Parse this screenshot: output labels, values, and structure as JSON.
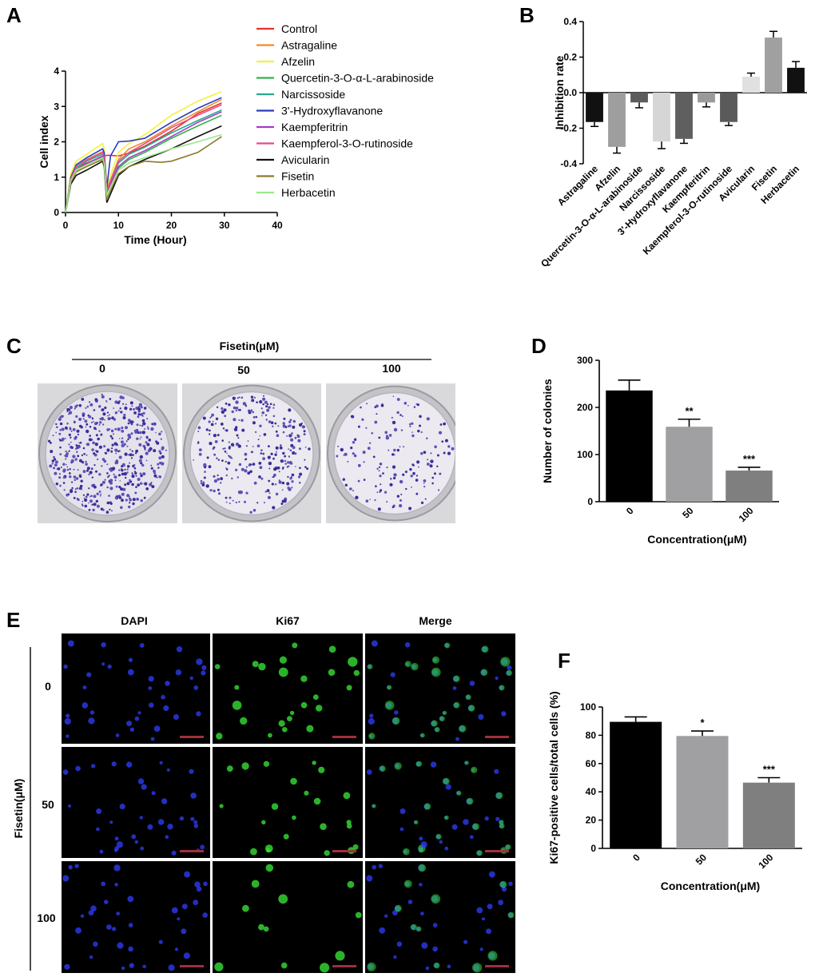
{
  "panels": {
    "A": {
      "label": "A"
    },
    "B": {
      "label": "B"
    },
    "C": {
      "label": "C",
      "header": "Fisetin(μM)",
      "doses": [
        "0",
        "50",
        "100"
      ]
    },
    "D": {
      "label": "D"
    },
    "E": {
      "label": "E",
      "columns": [
        "DAPI",
        "Ki67",
        "Merge"
      ],
      "row_axis_label": "Fisetin(μM)",
      "rows": [
        "0",
        "50",
        "100"
      ]
    },
    "F": {
      "label": "F"
    }
  },
  "colors": {
    "control": "#e8322b",
    "astragaline": "#f08a2a",
    "afzelin": "#f2f23a",
    "quercetin": "#32b34a",
    "narcissoside": "#1fae8e",
    "hydroxyflavanone": "#2a3bbd",
    "kaempferitrin": "#a63ac9",
    "kaempferol": "#e84b8a",
    "avicularin": "#111111",
    "fisetin": "#8a7a2a",
    "herbacetin": "#9ae88c",
    "dapi": "#2f3fff",
    "ki67": "#35e035"
  },
  "chart_data": [
    {
      "id": "A",
      "type": "line",
      "xlabel": "Time (Hour)",
      "ylabel": "Cell index",
      "xlim": [
        0,
        40
      ],
      "ylim": [
        0,
        4
      ],
      "xticks": [
        "0",
        "10",
        "20",
        "30",
        "40"
      ],
      "yticks": [
        "0",
        "1",
        "2",
        "3",
        "4"
      ],
      "legend_position": "right",
      "series": [
        {
          "name": "Control",
          "color": "#e8322b",
          "points": [
            [
              0,
              0
            ],
            [
              1,
              0.9
            ],
            [
              2,
              1.25
            ],
            [
              4,
              1.4
            ],
            [
              7,
              1.58
            ],
            [
              7.3,
              1.6
            ],
            [
              8,
              1.62
            ],
            [
              10,
              1.6
            ],
            [
              12,
              1.68
            ],
            [
              15,
              1.88
            ],
            [
              20,
              2.3
            ],
            [
              25,
              2.8
            ],
            [
              29.5,
              3.1
            ]
          ]
        },
        {
          "name": "Astragaline",
          "color": "#f08a2a",
          "points": [
            [
              0,
              0
            ],
            [
              1,
              0.95
            ],
            [
              2,
              1.3
            ],
            [
              4,
              1.5
            ],
            [
              7,
              1.72
            ],
            [
              7.3,
              1.6
            ],
            [
              7.8,
              0.65
            ],
            [
              10,
              1.5
            ],
            [
              12,
              1.8
            ],
            [
              15,
              2.0
            ],
            [
              20,
              2.45
            ],
            [
              25,
              2.85
            ],
            [
              29.5,
              3.2
            ]
          ]
        },
        {
          "name": "Afzelin",
          "color": "#f2f23a",
          "points": [
            [
              0,
              0
            ],
            [
              1,
              1.1
            ],
            [
              2,
              1.45
            ],
            [
              4,
              1.65
            ],
            [
              7,
              1.95
            ],
            [
              7.3,
              1.8
            ],
            [
              7.8,
              0.75
            ],
            [
              10,
              1.7
            ],
            [
              12,
              1.95
            ],
            [
              15,
              2.2
            ],
            [
              20,
              2.75
            ],
            [
              25,
              3.15
            ],
            [
              29.5,
              3.42
            ]
          ]
        },
        {
          "name": "Quercetin-3-O-α-L-arabinoside",
          "color": "#32b34a",
          "points": [
            [
              0,
              0
            ],
            [
              1,
              0.9
            ],
            [
              2,
              1.2
            ],
            [
              4,
              1.35
            ],
            [
              7,
              1.55
            ],
            [
              7.3,
              1.4
            ],
            [
              7.8,
              0.55
            ],
            [
              10,
              1.25
            ],
            [
              12,
              1.5
            ],
            [
              15,
              1.7
            ],
            [
              20,
              2.1
            ],
            [
              25,
              2.45
            ],
            [
              29.5,
              2.75
            ]
          ]
        },
        {
          "name": "Narcissoside",
          "color": "#1fae8e",
          "points": [
            [
              0,
              0
            ],
            [
              1,
              0.95
            ],
            [
              2,
              1.25
            ],
            [
              4,
              1.45
            ],
            [
              7,
              1.65
            ],
            [
              7.3,
              1.5
            ],
            [
              7.8,
              0.6
            ],
            [
              10,
              1.4
            ],
            [
              12,
              1.65
            ],
            [
              15,
              1.85
            ],
            [
              20,
              2.25
            ],
            [
              25,
              2.6
            ],
            [
              29.5,
              2.9
            ]
          ]
        },
        {
          "name": "3'-Hydroxyflavanone",
          "color": "#2a3bbd",
          "points": [
            [
              0,
              0
            ],
            [
              1,
              1.0
            ],
            [
              2,
              1.35
            ],
            [
              4,
              1.55
            ],
            [
              7,
              1.8
            ],
            [
              7.3,
              1.7
            ],
            [
              7.8,
              0.7
            ],
            [
              8.5,
              1.6
            ],
            [
              10,
              2.0
            ],
            [
              12,
              2.02
            ],
            [
              15,
              2.1
            ],
            [
              20,
              2.55
            ],
            [
              25,
              2.95
            ],
            [
              29.5,
              3.25
            ]
          ]
        },
        {
          "name": "Kaempferitrin",
          "color": "#a63ac9",
          "points": [
            [
              0,
              0
            ],
            [
              1,
              0.9
            ],
            [
              2,
              1.2
            ],
            [
              4,
              1.38
            ],
            [
              7,
              1.6
            ],
            [
              7.3,
              1.45
            ],
            [
              7.8,
              0.55
            ],
            [
              10,
              1.3
            ],
            [
              12,
              1.55
            ],
            [
              15,
              1.75
            ],
            [
              20,
              2.15
            ],
            [
              25,
              2.55
            ],
            [
              29.5,
              2.85
            ]
          ]
        },
        {
          "name": "Kaempferol-3-O-rutinoside",
          "color": "#e84b8a",
          "points": [
            [
              0,
              0
            ],
            [
              1,
              0.95
            ],
            [
              2,
              1.3
            ],
            [
              4,
              1.48
            ],
            [
              7,
              1.7
            ],
            [
              7.3,
              1.55
            ],
            [
              7.8,
              0.62
            ],
            [
              10,
              1.45
            ],
            [
              12,
              1.7
            ],
            [
              15,
              1.95
            ],
            [
              20,
              2.4
            ],
            [
              25,
              2.75
            ],
            [
              29.5,
              3.05
            ]
          ]
        },
        {
          "name": "Avicularin",
          "color": "#111111",
          "points": [
            [
              0,
              0
            ],
            [
              1,
              0.8
            ],
            [
              2,
              1.05
            ],
            [
              4,
              1.2
            ],
            [
              7,
              1.45
            ],
            [
              7.3,
              1.3
            ],
            [
              7.8,
              0.28
            ],
            [
              10,
              1.05
            ],
            [
              12,
              1.3
            ],
            [
              15,
              1.5
            ],
            [
              20,
              1.8
            ],
            [
              25,
              2.15
            ],
            [
              29.5,
              2.45
            ]
          ]
        },
        {
          "name": "Fisetin",
          "color": "#8a7a2a",
          "points": [
            [
              0,
              0
            ],
            [
              1,
              0.85
            ],
            [
              2,
              1.15
            ],
            [
              4,
              1.3
            ],
            [
              7,
              1.5
            ],
            [
              7.3,
              1.35
            ],
            [
              7.8,
              0.4
            ],
            [
              10,
              1.1
            ],
            [
              12,
              1.3
            ],
            [
              15,
              1.45
            ],
            [
              18,
              1.42
            ],
            [
              20,
              1.45
            ],
            [
              25,
              1.7
            ],
            [
              29.5,
              2.15
            ]
          ]
        },
        {
          "name": "Herbacetin",
          "color": "#9ae88c",
          "points": [
            [
              0,
              0
            ],
            [
              1,
              0.9
            ],
            [
              2,
              1.2
            ],
            [
              4,
              1.35
            ],
            [
              7,
              1.55
            ],
            [
              7.3,
              1.4
            ],
            [
              7.8,
              0.5
            ],
            [
              10,
              1.2
            ],
            [
              12,
              1.4
            ],
            [
              15,
              1.55
            ],
            [
              20,
              1.8
            ],
            [
              25,
              2.0
            ],
            [
              29.5,
              2.2
            ]
          ]
        }
      ]
    },
    {
      "id": "B",
      "type": "bar",
      "ylabel": "Inhibition rate",
      "ylim": [
        -0.4,
        0.4
      ],
      "yticks": [
        "-0.4",
        "-0.2",
        "0.0",
        "0.2",
        "0.4"
      ],
      "categories": [
        "Astragaline",
        "Afzelin",
        "Quercetin-3-O-α-L-arabinoside",
        "Narcissoside",
        "3'-Hydroxyflavanone",
        "Kaempferitrin",
        "Kaempferol-3-O-rutinoside",
        "Avicularin",
        "Fisetin",
        "Herbacetin"
      ],
      "values": [
        -0.165,
        -0.305,
        -0.055,
        -0.275,
        -0.26,
        -0.055,
        -0.165,
        0.09,
        0.31,
        0.14
      ],
      "errors": [
        0.025,
        0.035,
        0.03,
        0.04,
        0.025,
        0.025,
        0.02,
        0.02,
        0.035,
        0.035
      ],
      "bar_colors": [
        "#111111",
        "#9e9e9e",
        "#5c5c5c",
        "#d6d6d6",
        "#5f5f5f",
        "#9a9a9a",
        "#5a5a5a",
        "#e0e0e0",
        "#a0a0a0",
        "#111111"
      ]
    },
    {
      "id": "D",
      "type": "bar",
      "xlabel": "Concentration(μM)",
      "ylabel": "Number of colonies",
      "ylim": [
        0,
        300
      ],
      "yticks": [
        "0",
        "100",
        "200",
        "300"
      ],
      "categories": [
        "0",
        "50",
        "100"
      ],
      "values": [
        236,
        159,
        66
      ],
      "errors": [
        22,
        16,
        7
      ],
      "significance": [
        "",
        "**",
        "***"
      ],
      "bar_colors": [
        "#000000",
        "#a0a0a3",
        "#7f7f7f"
      ]
    },
    {
      "id": "F",
      "type": "bar",
      "xlabel": "Concentration(μM)",
      "ylabel": "Ki67-positive cells/total cells (%)",
      "ylim": [
        0,
        100
      ],
      "yticks": [
        "0",
        "20",
        "40",
        "60",
        "80",
        "100"
      ],
      "categories": [
        "0",
        "50",
        "100"
      ],
      "values": [
        89.5,
        79.5,
        46.5
      ],
      "errors": [
        3.5,
        3.5,
        3.5
      ],
      "significance": [
        "",
        "*",
        "***"
      ],
      "bar_colors": [
        "#000000",
        "#a0a0a3",
        "#7f7f7f"
      ]
    }
  ]
}
